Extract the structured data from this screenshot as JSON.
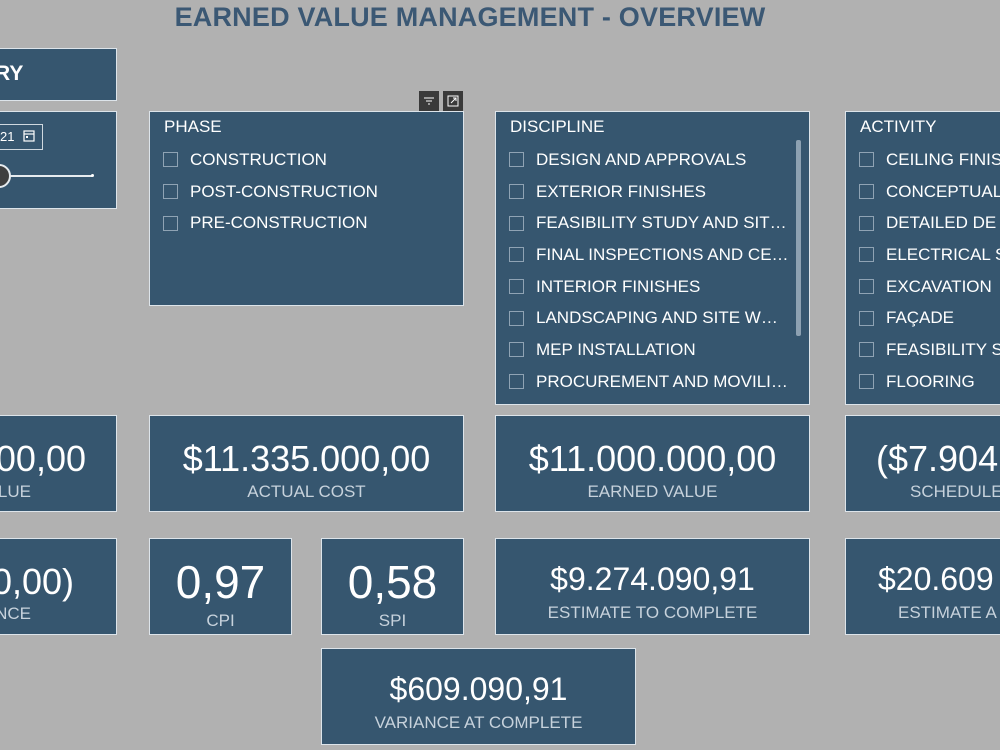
{
  "title": "EARNED VALUE MANAGEMENT - OVERVIEW",
  "top_left_label": "RY",
  "date_slicer": {
    "value_fragment": "21"
  },
  "phase": {
    "title": "PHASE",
    "items": [
      "CONSTRUCTION",
      "POST-CONSTRUCTION",
      "PRE-CONSTRUCTION"
    ]
  },
  "discipline": {
    "title": "DISCIPLINE",
    "items": [
      "DESIGN AND APPROVALS",
      "EXTERIOR FINISHES",
      "FEASIBILITY STUDY AND SIT…",
      "FINAL INSPECTIONS AND CE…",
      "INTERIOR FINISHES",
      "LANDSCAPING AND SITE WO…",
      "MEP INSTALLATION",
      "PROCUREMENT AND MOVILI…"
    ]
  },
  "activity": {
    "title": "ACTIVITY",
    "items": [
      "CEILING FINIS",
      "CONCEPTUAL",
      "DETAILED DE",
      "ELECTRICAL S",
      "EXCAVATION",
      "FAÇADE",
      "FEASIBILITY S",
      "FLOORING"
    ]
  },
  "kpis": {
    "planned_value": {
      "value": "00,00",
      "label": "LUE"
    },
    "actual_cost": {
      "value": "$11.335.000,00",
      "label": "ACTUAL COST"
    },
    "earned_value": {
      "value": "$11.000.000,00",
      "label": "EARNED VALUE"
    },
    "schedule_variance": {
      "value": "($7.904",
      "label": "SCHEDULE"
    },
    "cost_variance": {
      "value": "0,00)",
      "label": "NCE"
    },
    "cpi": {
      "value": "0,97",
      "label": "CPI"
    },
    "spi": {
      "value": "0,58",
      "label": "SPI"
    },
    "etc": {
      "value": "$9.274.090,91",
      "label": "ESTIMATE TO COMPLETE"
    },
    "eac": {
      "value": "$20.609",
      "label": "ESTIMATE A"
    },
    "vac": {
      "value": "$609.090,91",
      "label": "VARIANCE AT COMPLETE"
    }
  },
  "icons": [
    "filter-icon",
    "focus-mode-icon",
    "calendar-icon"
  ],
  "colors": {
    "background": "#b1b1b1",
    "card": "#36566f",
    "title": "#3b5874"
  }
}
